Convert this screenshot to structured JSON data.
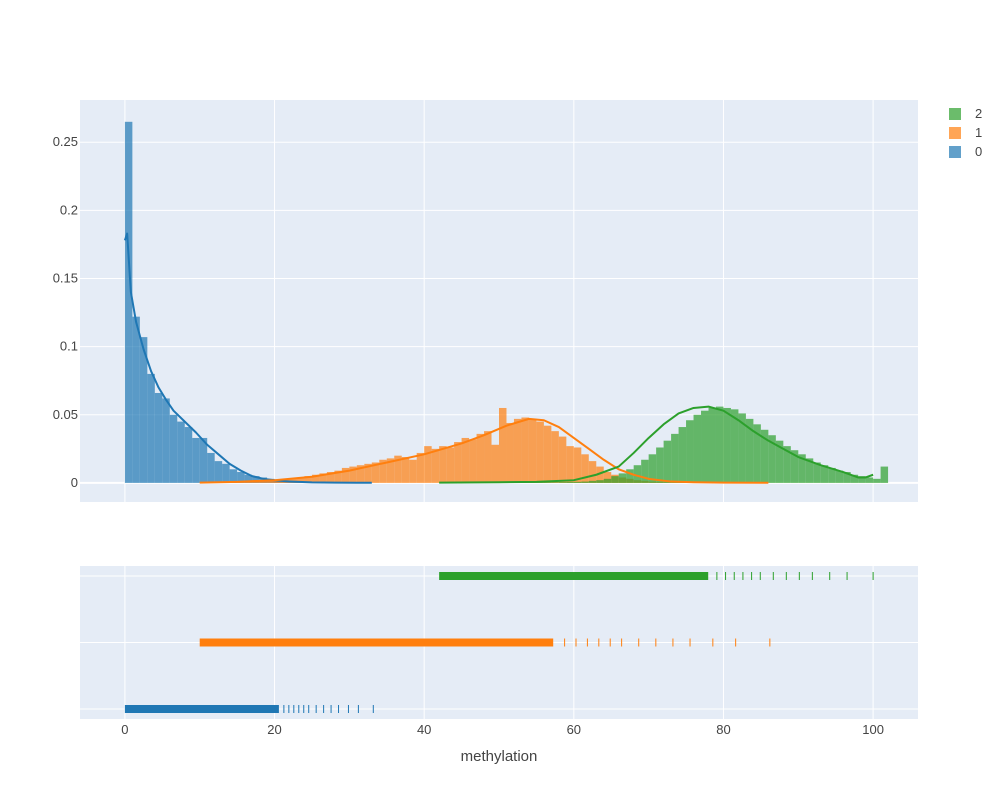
{
  "chart_data": {
    "type": "histogram",
    "xlabel": "methylation",
    "xlim": [
      -6,
      106
    ],
    "ylim": [
      -0.014,
      0.281
    ],
    "x_ticks": [
      0,
      20,
      40,
      60,
      80,
      100
    ],
    "y_ticks": [
      0,
      0.05,
      0.1,
      0.15,
      0.2,
      0.25
    ],
    "y_tick_labels": [
      "0",
      "0.05",
      "0.1",
      "0.15",
      "0.2",
      "0.25"
    ],
    "histnorm": "probability density",
    "bin_width": 1,
    "grid": true,
    "legend_placement": "top-right",
    "series": [
      {
        "name": "0",
        "color": "#1f77b4",
        "bins_start": 0,
        "hist": [
          0.265,
          0.122,
          0.107,
          0.08,
          0.066,
          0.062,
          0.05,
          0.045,
          0.041,
          0.033,
          0.033,
          0.022,
          0.016,
          0.014,
          0.01,
          0.008,
          0.006,
          0.005,
          0.004,
          0.003,
          0.002,
          0.002,
          0.0015,
          0.0012,
          0.001,
          0.0008,
          0.0006,
          0.0005,
          0.0004,
          0.0003,
          0.0002,
          0.0002,
          0.0001
        ],
        "kde_x": [
          0,
          0.3,
          0.8,
          1.5,
          2.5,
          3.5,
          4.5,
          5.5,
          6.5,
          8,
          9.5,
          11,
          12.5,
          14,
          15.5,
          17,
          18.5,
          20,
          22,
          25,
          28,
          31,
          33
        ],
        "kde_y": [
          0.178,
          0.183,
          0.14,
          0.118,
          0.098,
          0.082,
          0.07,
          0.061,
          0.053,
          0.045,
          0.037,
          0.028,
          0.021,
          0.014,
          0.009,
          0.005,
          0.003,
          0.002,
          0.001,
          0.0004,
          0.0002,
          0.0001,
          0.0001
        ],
        "rug_range": [
          0,
          33.2
        ]
      },
      {
        "name": "1",
        "color": "#ff7f0e",
        "bins_start": 10,
        "hist": [
          0.0005,
          0.0005,
          0.0006,
          0.0007,
          0.0008,
          0.0009,
          0.001,
          0.0012,
          0.0015,
          0.002,
          0.0025,
          0.003,
          0.0035,
          0.004,
          0.005,
          0.006,
          0.007,
          0.008,
          0.009,
          0.011,
          0.012,
          0.013,
          0.014,
          0.015,
          0.017,
          0.018,
          0.02,
          0.019,
          0.017,
          0.022,
          0.027,
          0.025,
          0.027,
          0.026,
          0.03,
          0.033,
          0.032,
          0.036,
          0.038,
          0.028,
          0.055,
          0.044,
          0.047,
          0.048,
          0.047,
          0.045,
          0.042,
          0.038,
          0.034,
          0.027,
          0.026,
          0.021,
          0.016,
          0.012,
          0.008,
          0.006,
          0.004,
          0.003,
          0.002,
          0.0015,
          0.001,
          0.0008,
          0.0006,
          0.0005,
          0.0004,
          0.0003,
          0.0003,
          0.0002,
          0.0002,
          0.0002,
          0.0001,
          0.0001,
          0.0001,
          0.0001,
          0.0001,
          0.0001
        ],
        "kde_x": [
          10,
          15,
          20,
          25,
          30,
          35,
          40,
          45,
          48,
          51,
          54,
          56,
          58,
          60,
          62,
          64,
          66,
          68,
          70,
          73,
          76,
          80,
          86
        ],
        "kde_y": [
          0.0002,
          0.0008,
          0.002,
          0.0045,
          0.009,
          0.015,
          0.021,
          0.029,
          0.035,
          0.042,
          0.047,
          0.046,
          0.041,
          0.033,
          0.025,
          0.017,
          0.01,
          0.006,
          0.003,
          0.001,
          0.0005,
          0.0002,
          0.0001
        ],
        "rug_range": [
          10,
          86.2
        ]
      },
      {
        "name": "2",
        "color": "#2ca02c",
        "bins_start": 42,
        "hist": [
          0.0001,
          0.0001,
          0.0001,
          0.0001,
          0.0001,
          0.0002,
          0.0002,
          0.0002,
          0.0002,
          0.0003,
          0.0003,
          0.0003,
          0.0004,
          0.0004,
          0.0005,
          0.0005,
          0.0006,
          0.0007,
          0.0008,
          0.001,
          0.0015,
          0.002,
          0.003,
          0.005,
          0.007,
          0.01,
          0.013,
          0.017,
          0.021,
          0.026,
          0.031,
          0.036,
          0.041,
          0.046,
          0.05,
          0.053,
          0.055,
          0.056,
          0.055,
          0.054,
          0.051,
          0.047,
          0.043,
          0.039,
          0.035,
          0.031,
          0.027,
          0.024,
          0.021,
          0.018,
          0.015,
          0.013,
          0.011,
          0.009,
          0.008,
          0.006,
          0.005,
          0.004,
          0.003,
          0.012
        ],
        "kde_x": [
          42,
          50,
          55,
          60,
          63,
          66,
          68,
          70,
          72,
          74,
          76,
          78,
          80,
          82,
          84,
          86,
          88,
          90,
          93,
          96,
          98,
          99,
          100
        ],
        "kde_y": [
          0.0002,
          0.0005,
          0.0008,
          0.002,
          0.006,
          0.012,
          0.022,
          0.033,
          0.043,
          0.051,
          0.055,
          0.056,
          0.053,
          0.046,
          0.038,
          0.031,
          0.025,
          0.019,
          0.013,
          0.008,
          0.004,
          0.004,
          0.006
        ],
        "rug_range": [
          42,
          100
        ]
      }
    ]
  }
}
